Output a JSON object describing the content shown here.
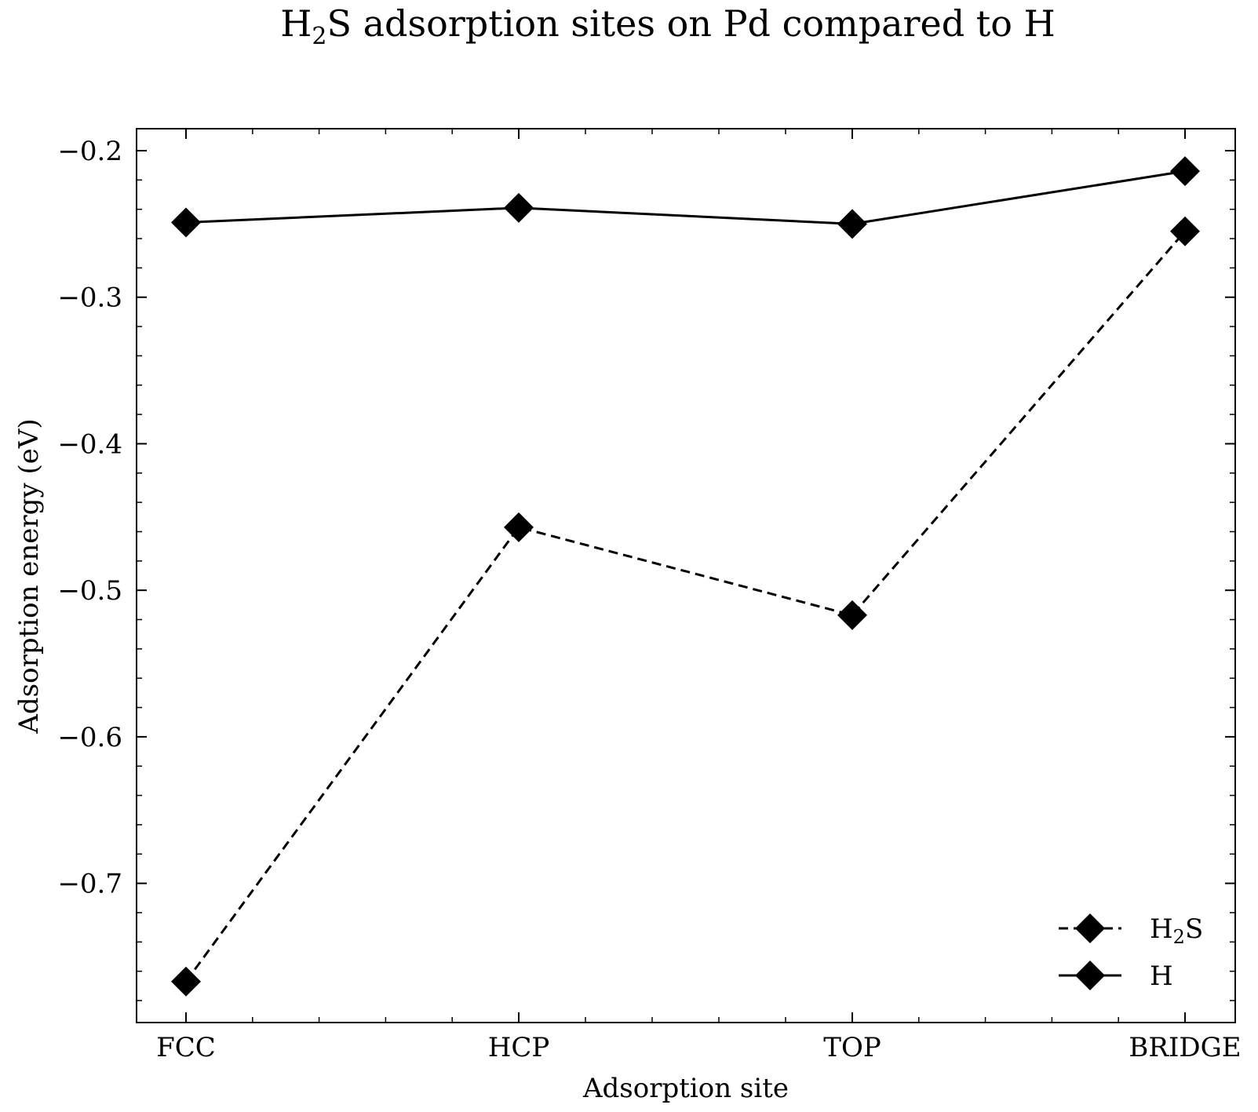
{
  "chart_data": {
    "type": "line",
    "title": {
      "main": "H",
      "sub": "2",
      "rest": "S adsorption sites on Pd compared to H"
    },
    "xlabel": "Adsorption site",
    "ylabel": "Adsorption energy (eV)",
    "categories": [
      "FCC",
      "HCP",
      "TOP",
      "BRIDGE"
    ],
    "ylim": [
      -0.795,
      -0.185
    ],
    "yticks": [
      -0.2,
      -0.3,
      -0.4,
      -0.5,
      -0.6,
      -0.7
    ],
    "ytick_labels": [
      "−0.2",
      "−0.3",
      "−0.4",
      "−0.5",
      "−0.6",
      "−0.7"
    ],
    "grid": false,
    "legend_position": "bottom-right",
    "series": [
      {
        "key": "h2s",
        "name_main": "H",
        "name_sub": "2",
        "name_rest": "S",
        "linestyle": "dashed",
        "marker": "diamond",
        "color": "#000000",
        "values": [
          -0.767,
          -0.457,
          -0.517,
          -0.255
        ]
      },
      {
        "key": "h",
        "name_main": "H",
        "name_sub": "",
        "name_rest": "",
        "linestyle": "solid",
        "marker": "diamond",
        "color": "#000000",
        "values": [
          -0.249,
          -0.239,
          -0.25,
          -0.214
        ]
      }
    ]
  }
}
